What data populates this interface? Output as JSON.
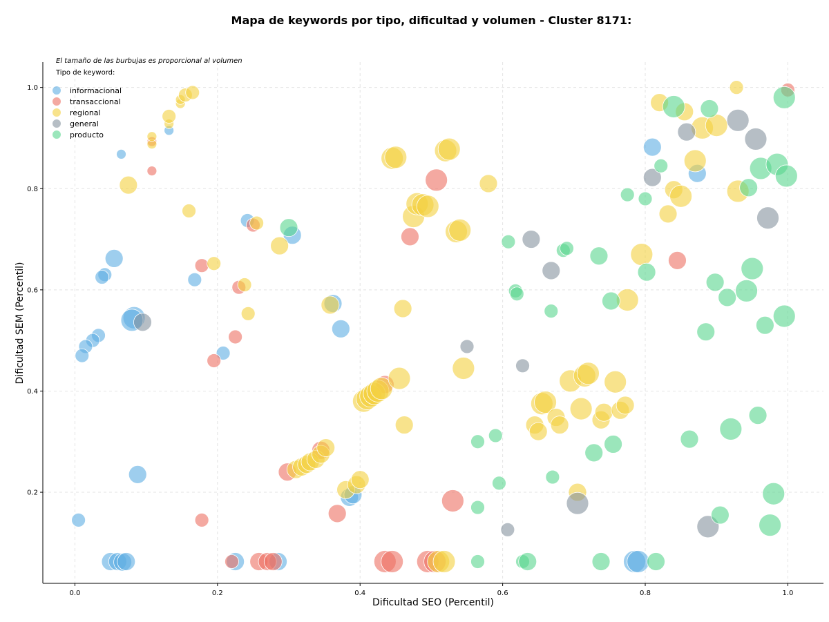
{
  "chart_data": {
    "type": "scatter",
    "title": "Mapa de keywords por tipo, dificultad y volumen - Cluster 8171:",
    "xlabel": "Dificultad SEO (Percentil)",
    "ylabel": "Dificultad SEM (Percentil)",
    "xlim": [
      -0.045,
      1.05
    ],
    "ylim": [
      0.02,
      1.05
    ],
    "x_ticks": [
      "0.0",
      "0.2",
      "0.4",
      "0.6",
      "0.8",
      "1.0"
    ],
    "y_ticks": [
      "0.2",
      "0.4",
      "0.6",
      "0.8",
      "1.0"
    ],
    "x_tick_values": [
      0.0,
      0.2,
      0.4,
      0.6,
      0.8,
      1.0
    ],
    "y_tick_values": [
      0.2,
      0.4,
      0.6,
      0.8,
      1.0
    ],
    "grid": true,
    "annotation": "El tamaño de las burbujas es proporcional al volumen",
    "legend_title": "Tipo de keyword:",
    "legend_position": "top-left",
    "series": [
      {
        "name": "informacional",
        "color": "#5DADE2",
        "points": [
          [
            0.055,
            0.662,
            3
          ],
          [
            0.042,
            0.63,
            2
          ],
          [
            0.038,
            0.625,
            2
          ],
          [
            0.065,
            0.868,
            1
          ],
          [
            0.132,
            0.915,
            1
          ],
          [
            0.168,
            0.62,
            2
          ],
          [
            0.242,
            0.737,
            2
          ],
          [
            0.305,
            0.708,
            3
          ],
          [
            0.083,
            0.545,
            4
          ],
          [
            0.08,
            0.54,
            4
          ],
          [
            0.033,
            0.51,
            2
          ],
          [
            0.025,
            0.5,
            2
          ],
          [
            0.015,
            0.488,
            2
          ],
          [
            0.01,
            0.47,
            2
          ],
          [
            0.088,
            0.235,
            3
          ],
          [
            0.005,
            0.145,
            2
          ],
          [
            0.05,
            0.063,
            3
          ],
          [
            0.06,
            0.063,
            3
          ],
          [
            0.067,
            0.062,
            3
          ],
          [
            0.072,
            0.063,
            3
          ],
          [
            0.225,
            0.063,
            3
          ],
          [
            0.285,
            0.063,
            3
          ],
          [
            0.362,
            0.573,
            3
          ],
          [
            0.373,
            0.523,
            3
          ],
          [
            0.208,
            0.475,
            2
          ],
          [
            0.385,
            0.19,
            3
          ],
          [
            0.39,
            0.195,
            3
          ],
          [
            0.81,
            0.882,
            3
          ],
          [
            0.873,
            0.83,
            3
          ],
          [
            0.785,
            0.063,
            4
          ],
          [
            0.79,
            0.063,
            4
          ]
        ]
      },
      {
        "name": "transaccional",
        "color": "#EC7063",
        "points": [
          [
            0.108,
            0.835,
            1
          ],
          [
            0.108,
            0.893,
            1
          ],
          [
            0.178,
            0.648,
            2
          ],
          [
            0.225,
            0.507,
            2
          ],
          [
            0.23,
            0.605,
            2
          ],
          [
            0.25,
            0.728,
            2
          ],
          [
            0.195,
            0.46,
            2
          ],
          [
            0.178,
            0.145,
            2
          ],
          [
            0.22,
            0.063,
            2
          ],
          [
            0.258,
            0.063,
            3
          ],
          [
            0.27,
            0.063,
            3
          ],
          [
            0.278,
            0.063,
            3
          ],
          [
            0.298,
            0.24,
            3
          ],
          [
            0.368,
            0.158,
            3
          ],
          [
            0.345,
            0.283,
            3
          ],
          [
            0.435,
            0.413,
            3
          ],
          [
            0.47,
            0.705,
            3
          ],
          [
            0.507,
            0.817,
            4
          ],
          [
            0.53,
            0.183,
            4
          ],
          [
            0.435,
            0.063,
            4
          ],
          [
            0.445,
            0.063,
            4
          ],
          [
            0.495,
            0.063,
            4
          ],
          [
            0.505,
            0.063,
            4
          ],
          [
            0.845,
            0.658,
            3
          ],
          [
            1.0,
            0.995,
            2
          ]
        ]
      },
      {
        "name": "regional",
        "color": "#F4D03F",
        "points": [
          [
            0.075,
            0.807,
            3
          ],
          [
            0.108,
            0.888,
            1
          ],
          [
            0.108,
            0.903,
            1
          ],
          [
            0.132,
            0.928,
            1
          ],
          [
            0.132,
            0.943,
            2
          ],
          [
            0.148,
            0.968,
            1
          ],
          [
            0.148,
            0.976,
            1
          ],
          [
            0.155,
            0.985,
            2
          ],
          [
            0.165,
            0.99,
            2
          ],
          [
            0.16,
            0.756,
            2
          ],
          [
            0.195,
            0.652,
            2
          ],
          [
            0.238,
            0.61,
            2
          ],
          [
            0.255,
            0.732,
            2
          ],
          [
            0.243,
            0.553,
            2
          ],
          [
            0.287,
            0.687,
            3
          ],
          [
            0.31,
            0.245,
            3
          ],
          [
            0.318,
            0.25,
            3
          ],
          [
            0.325,
            0.255,
            3
          ],
          [
            0.33,
            0.26,
            3
          ],
          [
            0.338,
            0.265,
            3
          ],
          [
            0.345,
            0.275,
            3
          ],
          [
            0.352,
            0.288,
            3
          ],
          [
            0.358,
            0.57,
            3
          ],
          [
            0.38,
            0.205,
            3
          ],
          [
            0.395,
            0.215,
            3
          ],
          [
            0.4,
            0.225,
            3
          ],
          [
            0.405,
            0.38,
            4
          ],
          [
            0.41,
            0.385,
            4
          ],
          [
            0.415,
            0.39,
            4
          ],
          [
            0.42,
            0.395,
            4
          ],
          [
            0.425,
            0.4,
            4
          ],
          [
            0.43,
            0.405,
            4
          ],
          [
            0.445,
            0.86,
            4
          ],
          [
            0.45,
            0.862,
            4
          ],
          [
            0.455,
            0.425,
            4
          ],
          [
            0.46,
            0.563,
            3
          ],
          [
            0.462,
            0.333,
            3
          ],
          [
            0.475,
            0.745,
            4
          ],
          [
            0.48,
            0.77,
            4
          ],
          [
            0.488,
            0.768,
            4
          ],
          [
            0.495,
            0.765,
            4
          ],
          [
            0.51,
            0.063,
            4
          ],
          [
            0.518,
            0.063,
            4
          ],
          [
            0.52,
            0.875,
            4
          ],
          [
            0.525,
            0.878,
            4
          ],
          [
            0.535,
            0.715,
            4
          ],
          [
            0.54,
            0.718,
            4
          ],
          [
            0.545,
            0.445,
            4
          ],
          [
            0.58,
            0.81,
            3
          ],
          [
            0.645,
            0.333,
            3
          ],
          [
            0.65,
            0.32,
            3
          ],
          [
            0.655,
            0.375,
            4
          ],
          [
            0.66,
            0.378,
            4
          ],
          [
            0.675,
            0.348,
            3
          ],
          [
            0.68,
            0.333,
            3
          ],
          [
            0.695,
            0.42,
            4
          ],
          [
            0.705,
            0.2,
            3
          ],
          [
            0.71,
            0.365,
            4
          ],
          [
            0.715,
            0.43,
            4
          ],
          [
            0.72,
            0.435,
            4
          ],
          [
            0.738,
            0.343,
            3
          ],
          [
            0.742,
            0.358,
            3
          ],
          [
            0.758,
            0.418,
            4
          ],
          [
            0.765,
            0.362,
            3
          ],
          [
            0.772,
            0.372,
            3
          ],
          [
            0.775,
            0.58,
            4
          ],
          [
            0.795,
            0.67,
            4
          ],
          [
            0.82,
            0.97,
            3
          ],
          [
            0.832,
            0.75,
            3
          ],
          [
            0.84,
            0.798,
            3
          ],
          [
            0.85,
            0.785,
            4
          ],
          [
            0.855,
            0.952,
            3
          ],
          [
            0.87,
            0.855,
            4
          ],
          [
            0.88,
            0.92,
            4
          ],
          [
            0.9,
            0.925,
            4
          ],
          [
            0.93,
            0.795,
            4
          ],
          [
            0.928,
            1.0,
            2
          ]
        ]
      },
      {
        "name": "general",
        "color": "#85929E",
        "points": [
          [
            0.095,
            0.536,
            3
          ],
          [
            0.55,
            0.488,
            2
          ],
          [
            0.607,
            0.126,
            2
          ],
          [
            0.628,
            0.45,
            2
          ],
          [
            0.64,
            0.7,
            3
          ],
          [
            0.668,
            0.638,
            3
          ],
          [
            0.705,
            0.178,
            4
          ],
          [
            0.81,
            0.822,
            3
          ],
          [
            0.858,
            0.912,
            3
          ],
          [
            0.888,
            0.132,
            4
          ],
          [
            0.93,
            0.935,
            4
          ],
          [
            0.955,
            0.898,
            4
          ],
          [
            0.972,
            0.742,
            4
          ]
        ]
      },
      {
        "name": "producto",
        "color": "#58D68D",
        "points": [
          [
            0.3,
            0.723,
            3
          ],
          [
            0.565,
            0.3,
            2
          ],
          [
            0.565,
            0.17,
            2
          ],
          [
            0.565,
            0.063,
            2
          ],
          [
            0.59,
            0.312,
            2
          ],
          [
            0.595,
            0.218,
            2
          ],
          [
            0.608,
            0.695,
            2
          ],
          [
            0.618,
            0.598,
            2
          ],
          [
            0.62,
            0.592,
            2
          ],
          [
            0.628,
            0.063,
            2
          ],
          [
            0.635,
            0.063,
            3
          ],
          [
            0.668,
            0.558,
            2
          ],
          [
            0.67,
            0.23,
            2
          ],
          [
            0.685,
            0.678,
            2
          ],
          [
            0.69,
            0.682,
            2
          ],
          [
            0.728,
            0.278,
            3
          ],
          [
            0.735,
            0.667,
            3
          ],
          [
            0.738,
            0.063,
            3
          ],
          [
            0.752,
            0.578,
            3
          ],
          [
            0.755,
            0.295,
            3
          ],
          [
            0.775,
            0.788,
            2
          ],
          [
            0.8,
            0.78,
            2
          ],
          [
            0.802,
            0.635,
            3
          ],
          [
            0.815,
            0.063,
            3
          ],
          [
            0.822,
            0.845,
            2
          ],
          [
            0.84,
            0.962,
            4
          ],
          [
            0.862,
            0.305,
            3
          ],
          [
            0.885,
            0.517,
            3
          ],
          [
            0.89,
            0.958,
            3
          ],
          [
            0.898,
            0.615,
            3
          ],
          [
            0.905,
            0.155,
            3
          ],
          [
            0.915,
            0.585,
            3
          ],
          [
            0.92,
            0.325,
            4
          ],
          [
            0.942,
            0.598,
            4
          ],
          [
            0.945,
            0.802,
            3
          ],
          [
            0.95,
            0.642,
            4
          ],
          [
            0.958,
            0.352,
            3
          ],
          [
            0.962,
            0.84,
            4
          ],
          [
            0.968,
            0.53,
            3
          ],
          [
            0.975,
            0.135,
            4
          ],
          [
            0.98,
            0.197,
            4
          ],
          [
            0.985,
            0.848,
            4
          ],
          [
            0.995,
            0.98,
            4
          ],
          [
            0.998,
            0.825,
            4
          ],
          [
            0.995,
            0.548,
            4
          ]
        ]
      }
    ]
  }
}
